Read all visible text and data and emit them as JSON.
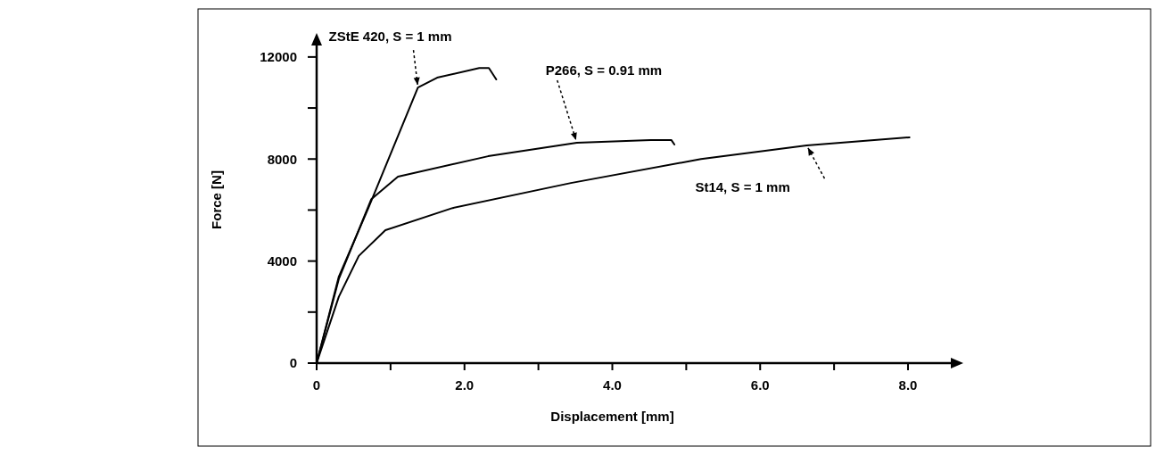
{
  "chart_data": {
    "type": "line",
    "xlabel": "Displacement [mm]",
    "ylabel": "Force [N]",
    "xlim": [
      0,
      8.7
    ],
    "ylim": [
      0,
      12800
    ],
    "xticks": [
      0,
      {
        "value": 1,
        "label": null
      },
      {
        "value": 2,
        "label": "2.0"
      },
      {
        "value": 3,
        "label": null
      },
      {
        "value": 4,
        "label": "4.0"
      },
      {
        "value": 5,
        "label": null
      },
      {
        "value": 6,
        "label": "6.0"
      },
      {
        "value": 7,
        "label": null
      },
      {
        "value": 8,
        "label": "8.0"
      }
    ],
    "yticks": [
      0,
      {
        "value": 2000,
        "label": null
      },
      4000,
      {
        "value": 6000,
        "label": null
      },
      8000,
      {
        "value": 10000,
        "label": null
      },
      12000
    ],
    "grid": false,
    "marker": "none",
    "line_style": "solid",
    "series": [
      {
        "color": "#000000",
        "x": [
          0,
          0.3,
          0.7,
          1.37,
          1.63,
          2.2,
          2.33,
          2.43
        ],
        "values": [
          0,
          3390,
          6080,
          10800,
          11190,
          11570,
          11570,
          11120
        ]
      },
      {
        "color": "#000000",
        "x": [
          0,
          0.3,
          0.74,
          1.1,
          2.32,
          3.52,
          4.52,
          4.8,
          4.84
        ],
        "values": [
          0,
          3300,
          6430,
          7310,
          8110,
          8640,
          8740,
          8740,
          8570
        ]
      },
      {
        "color": "#000000",
        "x": [
          0,
          0.3,
          0.57,
          0.93,
          1.84,
          3.44,
          5.2,
          6.63,
          8.02
        ],
        "values": [
          0,
          2600,
          4200,
          5210,
          6080,
          7060,
          8000,
          8530,
          8850
        ]
      }
    ],
    "annotations": [
      {
        "text": "ZStE 420, S = 1 mm",
        "x": 1.37,
        "y": 10800
      },
      {
        "text": "P266, S = 0.91 mm",
        "x": 3.52,
        "y": 8640
      },
      {
        "text": "St14, S = 1 mm",
        "x": 6.63,
        "y": 8530
      }
    ]
  }
}
